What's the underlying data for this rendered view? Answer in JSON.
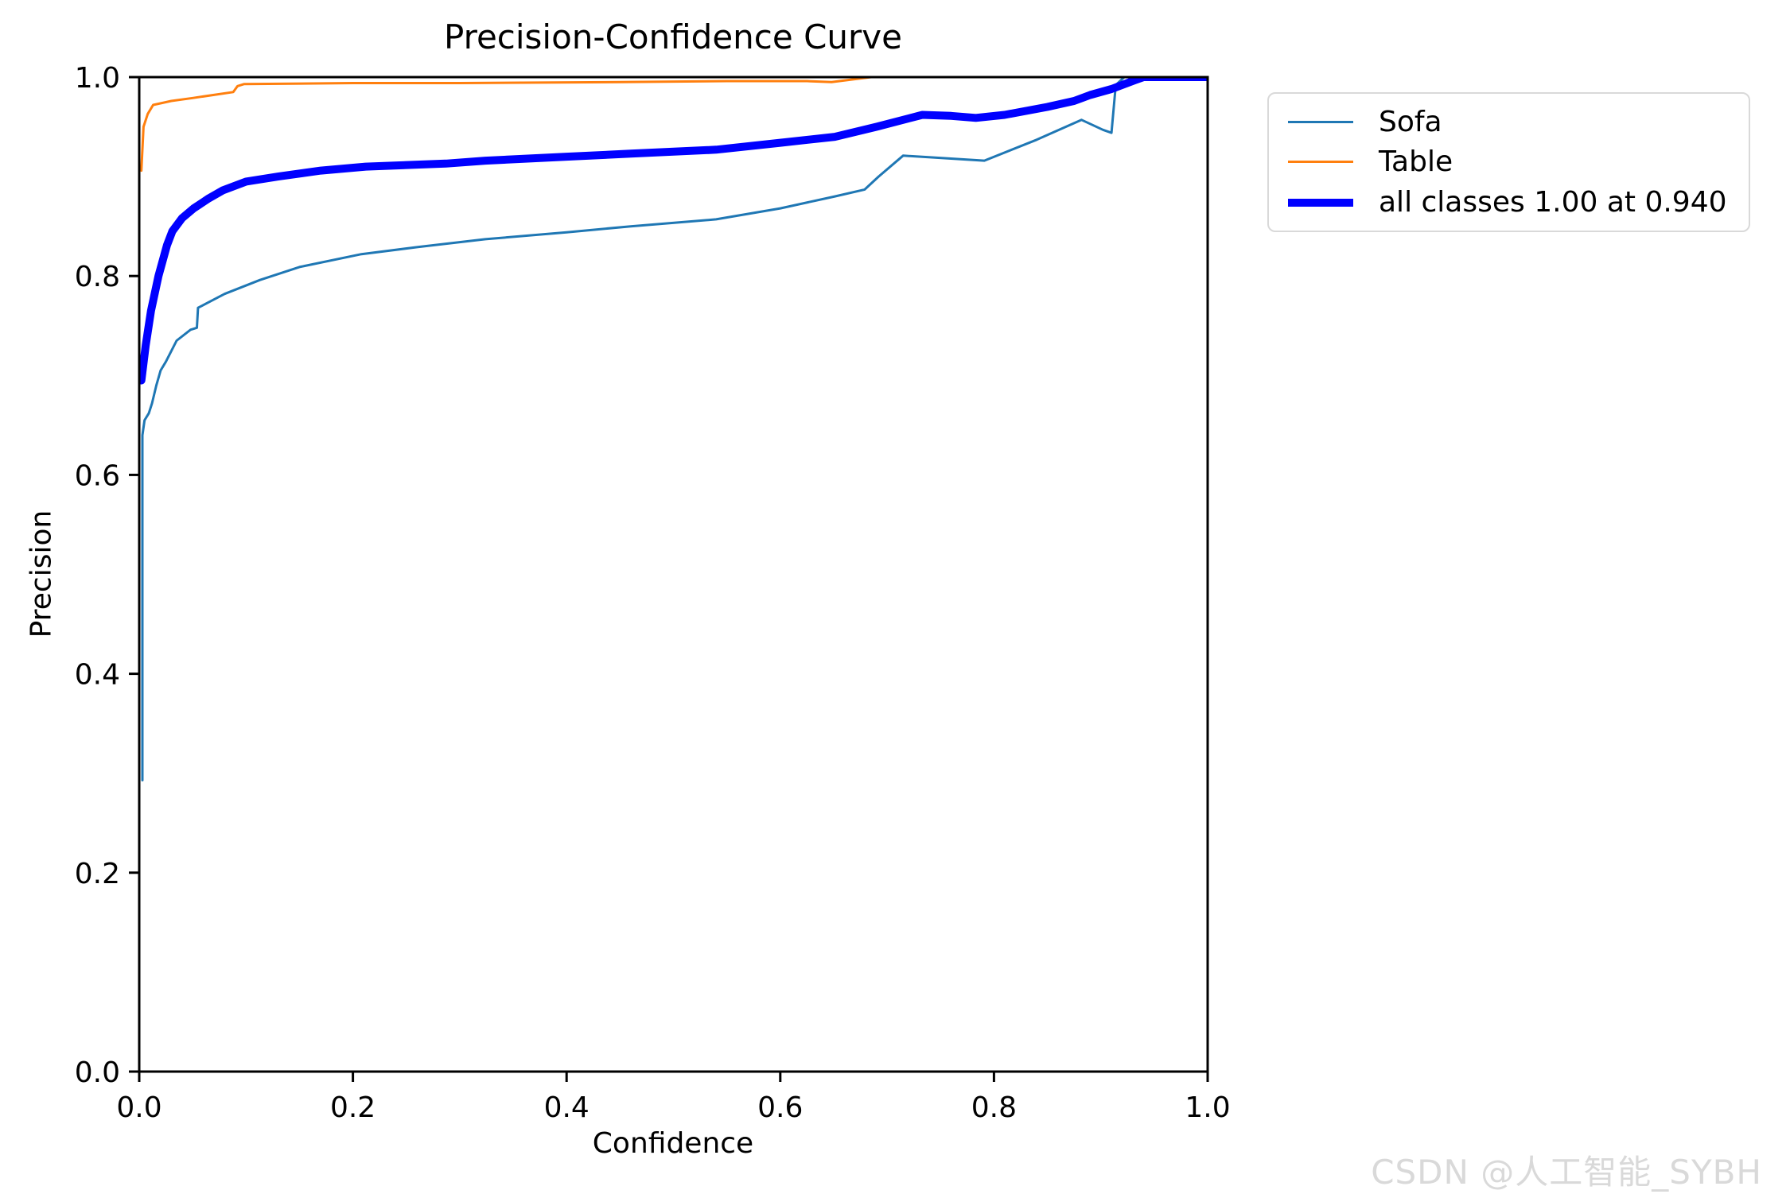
{
  "page": {
    "background": "#ffffff"
  },
  "chart_data": {
    "type": "line",
    "title": "Precision-Confidence Curve",
    "xlabel": "Confidence",
    "ylabel": "Precision",
    "xlim": [
      0.0,
      1.0
    ],
    "ylim": [
      0.0,
      1.0
    ],
    "grid": false,
    "axis_color": "#000000",
    "legend_position": "outside-upper-right",
    "xticks": {
      "values": [
        0.0,
        0.2,
        0.4,
        0.6,
        0.8,
        1.0
      ],
      "labels": [
        "0.0",
        "0.2",
        "0.4",
        "0.6",
        "0.8",
        "1.0"
      ]
    },
    "yticks": {
      "values": [
        0.0,
        0.2,
        0.4,
        0.6,
        0.8,
        1.0
      ],
      "labels": [
        "0.0",
        "0.2",
        "0.4",
        "0.6",
        "0.8",
        "1.0"
      ]
    },
    "series": [
      {
        "name": "Sofa",
        "color": "#1f77b4",
        "line_width": 3,
        "points": [
          [
            0.003,
            0.293
          ],
          [
            0.003,
            0.64
          ],
          [
            0.005,
            0.655
          ],
          [
            0.009,
            0.662
          ],
          [
            0.012,
            0.672
          ],
          [
            0.016,
            0.69
          ],
          [
            0.02,
            0.705
          ],
          [
            0.025,
            0.714
          ],
          [
            0.035,
            0.735
          ],
          [
            0.048,
            0.746
          ],
          [
            0.054,
            0.748
          ],
          [
            0.055,
            0.768
          ],
          [
            0.08,
            0.782
          ],
          [
            0.113,
            0.796
          ],
          [
            0.15,
            0.809
          ],
          [
            0.208,
            0.822
          ],
          [
            0.26,
            0.829
          ],
          [
            0.324,
            0.837
          ],
          [
            0.4,
            0.844
          ],
          [
            0.46,
            0.85
          ],
          [
            0.54,
            0.857
          ],
          [
            0.6,
            0.868
          ],
          [
            0.651,
            0.88
          ],
          [
            0.679,
            0.887
          ],
          [
            0.692,
            0.9
          ],
          [
            0.715,
            0.921
          ],
          [
            0.745,
            0.919
          ],
          [
            0.791,
            0.916
          ],
          [
            0.84,
            0.937
          ],
          [
            0.882,
            0.957
          ],
          [
            0.902,
            0.947
          ],
          [
            0.91,
            0.944
          ],
          [
            0.914,
            0.992
          ],
          [
            0.922,
            1.0
          ],
          [
            1.0,
            1.0
          ]
        ]
      },
      {
        "name": "Table",
        "color": "#ff7f0e",
        "line_width": 3,
        "points": [
          [
            0.002,
            0.906
          ],
          [
            0.004,
            0.95
          ],
          [
            0.008,
            0.963
          ],
          [
            0.013,
            0.972
          ],
          [
            0.03,
            0.976
          ],
          [
            0.05,
            0.979
          ],
          [
            0.088,
            0.985
          ],
          [
            0.092,
            0.991
          ],
          [
            0.098,
            0.993
          ],
          [
            0.2,
            0.994
          ],
          [
            0.3,
            0.994
          ],
          [
            0.45,
            0.995
          ],
          [
            0.55,
            0.996
          ],
          [
            0.625,
            0.996
          ],
          [
            0.648,
            0.995
          ],
          [
            0.685,
            1.0
          ],
          [
            1.0,
            1.0
          ]
        ]
      },
      {
        "name": "all classes 1.00 at 0.940",
        "color": "#0000ff",
        "line_width": 10,
        "points": [
          [
            0.002,
            0.695
          ],
          [
            0.006,
            0.73
          ],
          [
            0.011,
            0.765
          ],
          [
            0.018,
            0.8
          ],
          [
            0.026,
            0.831
          ],
          [
            0.031,
            0.845
          ],
          [
            0.04,
            0.858
          ],
          [
            0.051,
            0.868
          ],
          [
            0.065,
            0.878
          ],
          [
            0.078,
            0.886
          ],
          [
            0.1,
            0.895
          ],
          [
            0.13,
            0.9
          ],
          [
            0.17,
            0.906
          ],
          [
            0.212,
            0.91
          ],
          [
            0.287,
            0.913
          ],
          [
            0.324,
            0.916
          ],
          [
            0.4,
            0.92
          ],
          [
            0.46,
            0.923
          ],
          [
            0.54,
            0.927
          ],
          [
            0.6,
            0.934
          ],
          [
            0.651,
            0.94
          ],
          [
            0.69,
            0.95
          ],
          [
            0.733,
            0.962
          ],
          [
            0.76,
            0.961
          ],
          [
            0.783,
            0.959
          ],
          [
            0.81,
            0.962
          ],
          [
            0.85,
            0.97
          ],
          [
            0.875,
            0.976
          ],
          [
            0.89,
            0.982
          ],
          [
            0.91,
            0.988
          ],
          [
            0.932,
            0.997
          ],
          [
            0.94,
            1.0
          ],
          [
            1.0,
            1.0
          ]
        ]
      }
    ]
  },
  "watermark": {
    "text": "CSDN @人工智能_SYBH",
    "color": "#d9d9d9"
  }
}
